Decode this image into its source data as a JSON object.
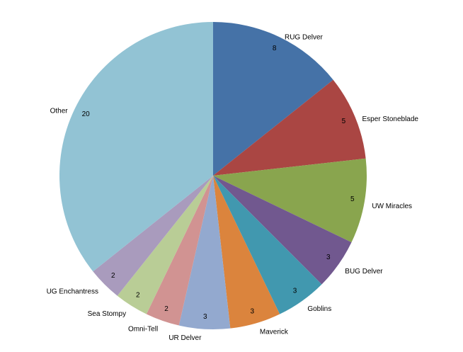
{
  "chart_data": {
    "type": "pie",
    "categories": [
      "RUG Delver",
      "Esper Stoneblade",
      "UW Miracles",
      "BUG Delver",
      "Goblins",
      "Maverick",
      "UR Delver",
      "Omni-Tell",
      "Sea Stompy",
      "UG Enchantress",
      "Other"
    ],
    "values": [
      8,
      5,
      5,
      3,
      3,
      3,
      3,
      2,
      2,
      2,
      20
    ],
    "colors": [
      "#4572A7",
      "#AA4643",
      "#89A54E",
      "#71588F",
      "#4198AF",
      "#DB843D",
      "#93A9CF",
      "#D19392",
      "#B9CD96",
      "#A99BBD",
      "#92C3D4"
    ]
  }
}
